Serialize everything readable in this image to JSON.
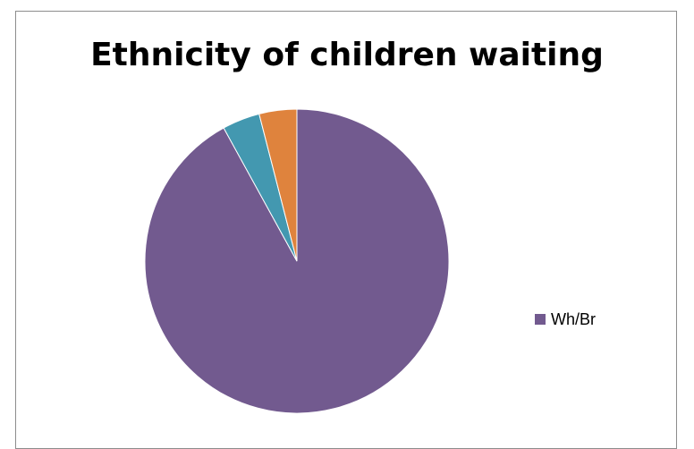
{
  "chart_data": {
    "type": "pie",
    "title": "Ethnicity of children waiting",
    "slices": [
      {
        "name": "Wh/Br",
        "value": 92,
        "color": "#725A8F"
      },
      {
        "value": 4,
        "color": "#4398B0"
      },
      {
        "value": 4,
        "color": "#DF833D"
      }
    ],
    "start_angle": 0,
    "direction": "clockwise",
    "legend_position": "right"
  }
}
